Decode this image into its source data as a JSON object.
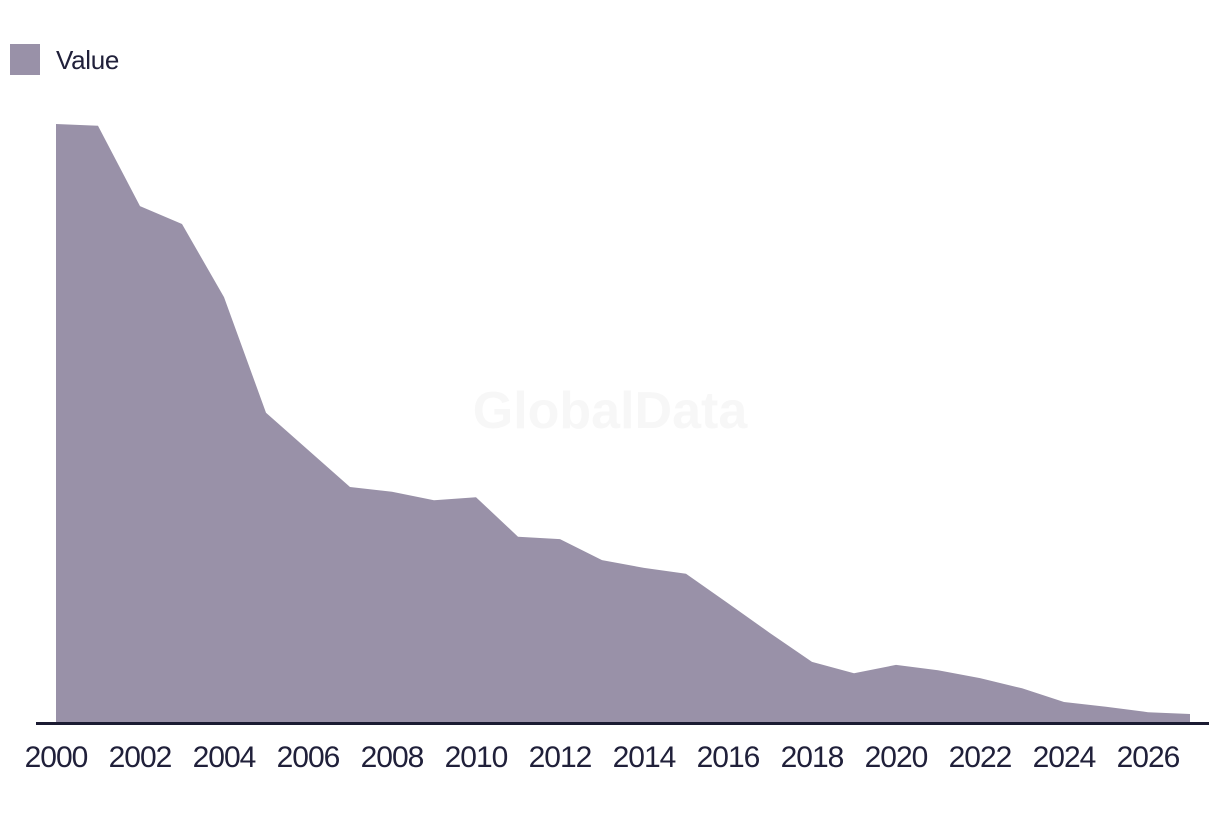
{
  "legend": {
    "label": "Value",
    "swatch_color": "#9991a8"
  },
  "watermark": "GlobalData",
  "colors": {
    "area_fill": "#9991a8",
    "axis_line": "#1b1b32",
    "tick_text": "#20203a",
    "watermark": "#f7f7f7",
    "background": "#ffffff"
  },
  "chart_data": {
    "type": "area",
    "title": "",
    "xlabel": "",
    "ylabel": "",
    "x": [
      2000,
      2001,
      2002,
      2003,
      2004,
      2005,
      2006,
      2007,
      2008,
      2009,
      2010,
      2011,
      2012,
      2013,
      2014,
      2015,
      2016,
      2017,
      2018,
      2019,
      2020,
      2021,
      2022,
      2023,
      2024,
      2025,
      2026,
      2027
    ],
    "series": [
      {
        "name": "Value",
        "values": [
          100,
          99.7,
          86.3,
          83.3,
          71.1,
          51.8,
          45.6,
          39.4,
          38.6,
          37.2,
          37.7,
          31.1,
          30.7,
          27.2,
          25.9,
          24.9,
          20.0,
          15.0,
          10.2,
          8.3,
          9.7,
          8.8,
          7.5,
          5.8,
          3.5,
          2.7,
          1.8,
          1.5
        ]
      }
    ],
    "values_note": "relative scale estimated from pixels; y-axis not displayed; 2000 peak = 100",
    "x_tick_labels": [
      "2000",
      "2002",
      "2004",
      "2006",
      "2008",
      "2010",
      "2012",
      "2014",
      "2016",
      "2018",
      "2020",
      "2022",
      "2024",
      "2026"
    ],
    "xlim": [
      2000,
      2027
    ],
    "ylim": [
      0,
      105
    ],
    "y_axis_visible": false,
    "grid": false,
    "legend_position": "top-left"
  }
}
